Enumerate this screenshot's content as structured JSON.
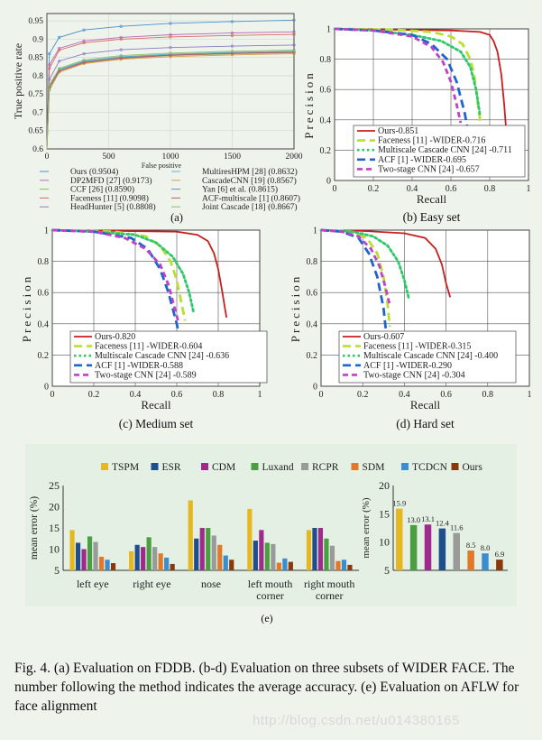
{
  "figure": {
    "caption": "Fig. 4.  (a) Evaluation on FDDB. (b-d) Evaluation on three subsets of WIDER FACE. The number following the method indicates the average accuracy. (e) Evaluation on AFLW for face alignment",
    "watermark": "http://blog.csdn.net/u014380165"
  },
  "chart_data": [
    {
      "type": "line",
      "panel_label": "(a)",
      "xlabel": "False positive",
      "ylabel": "True positive rate",
      "xlim": [
        0,
        2000
      ],
      "ylim": [
        0.6,
        0.97
      ],
      "xticks": [
        "0",
        "500",
        "1000",
        "1500",
        "2000"
      ],
      "yticks": [
        "0.6",
        "0.65",
        "0.7",
        "0.75",
        "0.8",
        "0.85",
        "0.9",
        "0.95"
      ],
      "legend_placement": "below",
      "series": [
        {
          "name": "Ours (0.9504)",
          "color": "#4a8ed0",
          "x": [
            0,
            20,
            100,
            300,
            600,
            1000,
            1500,
            2000
          ],
          "y": [
            0.6,
            0.86,
            0.905,
            0.925,
            0.935,
            0.943,
            0.948,
            0.952
          ]
        },
        {
          "name": "DP2MFD [27] (0.9173)",
          "color": "#b96ab8",
          "x": [
            0,
            20,
            100,
            300,
            600,
            1000,
            1500,
            2000
          ],
          "y": [
            0.6,
            0.83,
            0.875,
            0.895,
            0.905,
            0.912,
            0.917,
            0.92
          ]
        },
        {
          "name": "CCF [26] (0.8590)",
          "color": "#8cb85a",
          "x": [
            0,
            20,
            100,
            300,
            600,
            1000,
            1500,
            2000
          ],
          "y": [
            0.6,
            0.76,
            0.81,
            0.835,
            0.847,
            0.855,
            0.86,
            0.863
          ]
        },
        {
          "name": "Faceness [11] (0.9098)",
          "color": "#d86a60",
          "x": [
            0,
            20,
            100,
            300,
            600,
            1000,
            1500,
            2000
          ],
          "y": [
            0.6,
            0.82,
            0.87,
            0.89,
            0.9,
            0.906,
            0.91,
            0.913
          ]
        },
        {
          "name": "HeadHunter [5] (0.8808)",
          "color": "#8e79c4",
          "x": [
            0,
            20,
            100,
            300,
            600,
            1000,
            1500,
            2000
          ],
          "y": [
            0.6,
            0.79,
            0.84,
            0.86,
            0.871,
            0.877,
            0.881,
            0.884
          ]
        },
        {
          "name": "MultiresHPM [28] (0.8632)",
          "color": "#5ab8c8",
          "x": [
            0,
            20,
            100,
            300,
            600,
            1000,
            1500,
            2000
          ],
          "y": [
            0.6,
            0.77,
            0.818,
            0.84,
            0.852,
            0.859,
            0.864,
            0.867
          ]
        },
        {
          "name": "CascadeCNN [19] (0.8567)",
          "color": "#d9a04a",
          "x": [
            0,
            20,
            100,
            300,
            600,
            1000,
            1500,
            2000
          ],
          "y": [
            0.6,
            0.765,
            0.81,
            0.833,
            0.845,
            0.852,
            0.857,
            0.86
          ]
        },
        {
          "name": "Yan [6] et al. (0.8615)",
          "color": "#6a88c0",
          "x": [
            0,
            20,
            100,
            300,
            600,
            1000,
            1500,
            2000
          ],
          "y": [
            0.6,
            0.77,
            0.815,
            0.838,
            0.85,
            0.857,
            0.862,
            0.865
          ]
        },
        {
          "name": "ACF-multiscale [1] (0.8607)",
          "color": "#c45a5a",
          "x": [
            0,
            20,
            100,
            300,
            600,
            1000,
            1500,
            2000
          ],
          "y": [
            0.6,
            0.768,
            0.813,
            0.836,
            0.848,
            0.856,
            0.861,
            0.864
          ]
        },
        {
          "name": "Joint Cascade [18] (0.8667)",
          "color": "#8bbf6a",
          "x": [
            0,
            20,
            100,
            300,
            600,
            1000,
            1500,
            2000
          ],
          "y": [
            0.6,
            0.775,
            0.82,
            0.843,
            0.855,
            0.862,
            0.867,
            0.87
          ]
        }
      ]
    },
    {
      "type": "line",
      "panel_label": "(b) Easy set",
      "xlabel": "Recall",
      "ylabel": "Precision",
      "xlim": [
        0,
        1
      ],
      "ylim": [
        0,
        1
      ],
      "xticks": [
        "0",
        "0.2",
        "0.4",
        "0.6",
        "0.8",
        "1"
      ],
      "yticks": [
        "0",
        "0.2",
        "0.4",
        "0.6",
        "0.8",
        "1"
      ],
      "legend_placement": "bottom-left",
      "series": [
        {
          "name": "Ours-0.851",
          "color": "#c81e1e",
          "dash": "solid",
          "x": [
            0,
            0.3,
            0.6,
            0.75,
            0.8,
            0.82,
            0.84,
            0.86,
            0.875,
            0.885
          ],
          "y": [
            1,
            0.995,
            0.99,
            0.98,
            0.96,
            0.92,
            0.85,
            0.7,
            0.5,
            0.33
          ]
        },
        {
          "name": "Faceness [11] -WIDER-0.716",
          "color": "#b8e030",
          "dash": "long",
          "x": [
            0,
            0.3,
            0.5,
            0.6,
            0.66,
            0.7,
            0.72,
            0.74,
            0.76
          ],
          "y": [
            1,
            0.995,
            0.98,
            0.95,
            0.9,
            0.8,
            0.7,
            0.5,
            0.3
          ]
        },
        {
          "name": "Multiscale Cascade CNN [24] -0.711",
          "color": "#2ec86a",
          "dash": "dot",
          "x": [
            0,
            0.2,
            0.4,
            0.55,
            0.65,
            0.7,
            0.73,
            0.75
          ],
          "y": [
            1,
            0.99,
            0.96,
            0.92,
            0.85,
            0.75,
            0.6,
            0.43
          ]
        },
        {
          "name": "ACF [1] -WIDER-0.695",
          "color": "#1e64d0",
          "dash": "long",
          "x": [
            0,
            0.2,
            0.4,
            0.5,
            0.58,
            0.63,
            0.67,
            0.7,
            0.72
          ],
          "y": [
            1,
            0.99,
            0.96,
            0.9,
            0.8,
            0.65,
            0.45,
            0.25,
            0.05
          ]
        },
        {
          "name": "Two-stage CNN [24] -0.657",
          "color": "#c040c8",
          "dash": "short",
          "x": [
            0,
            0.2,
            0.4,
            0.5,
            0.56,
            0.6,
            0.63,
            0.65
          ],
          "y": [
            1,
            0.99,
            0.95,
            0.88,
            0.78,
            0.65,
            0.5,
            0.38
          ]
        }
      ]
    },
    {
      "type": "line",
      "panel_label": "(c) Medium set",
      "xlabel": "Recall",
      "ylabel": "Precision",
      "xlim": [
        0,
        1
      ],
      "ylim": [
        0,
        1
      ],
      "xticks": [
        "0",
        "0.2",
        "0.4",
        "0.6",
        "0.8",
        "1"
      ],
      "yticks": [
        "0",
        "0.2",
        "0.4",
        "0.6",
        "0.8",
        "1"
      ],
      "legend_placement": "bottom-left",
      "series": [
        {
          "name": "Ours-0.820",
          "color": "#c81e1e",
          "dash": "solid",
          "x": [
            0,
            0.3,
            0.6,
            0.7,
            0.75,
            0.78,
            0.8,
            0.82,
            0.835,
            0.84
          ],
          "y": [
            1,
            0.995,
            0.99,
            0.97,
            0.93,
            0.85,
            0.75,
            0.6,
            0.48,
            0.44
          ]
        },
        {
          "name": "Faceness [11] -WIDER-0.604",
          "color": "#b8e030",
          "dash": "long",
          "x": [
            0,
            0.3,
            0.45,
            0.52,
            0.57,
            0.6,
            0.62,
            0.64
          ],
          "y": [
            1,
            0.99,
            0.96,
            0.9,
            0.8,
            0.68,
            0.55,
            0.42
          ]
        },
        {
          "name": "Multiscale Cascade CNN [24] -0.636",
          "color": "#2ec86a",
          "dash": "dot",
          "x": [
            0,
            0.2,
            0.4,
            0.5,
            0.58,
            0.63,
            0.66,
            0.68
          ],
          "y": [
            1,
            0.99,
            0.97,
            0.92,
            0.83,
            0.72,
            0.6,
            0.48
          ]
        },
        {
          "name": "ACF [1] -WIDER-0.588",
          "color": "#1e64d0",
          "dash": "long",
          "x": [
            0,
            0.2,
            0.38,
            0.46,
            0.52,
            0.56,
            0.6,
            0.63,
            0.65
          ],
          "y": [
            1,
            0.99,
            0.95,
            0.88,
            0.75,
            0.6,
            0.4,
            0.2,
            0.02
          ]
        },
        {
          "name": "Two-stage CNN [24] -0.589",
          "color": "#c040c8",
          "dash": "short",
          "x": [
            0,
            0.2,
            0.35,
            0.45,
            0.52,
            0.56,
            0.59,
            0.61
          ],
          "y": [
            1,
            0.99,
            0.95,
            0.88,
            0.78,
            0.65,
            0.5,
            0.4
          ]
        }
      ]
    },
    {
      "type": "line",
      "panel_label": "(d) Hard set",
      "xlabel": "Recall",
      "ylabel": "Precision",
      "xlim": [
        0,
        1
      ],
      "ylim": [
        0,
        1
      ],
      "xticks": [
        "0",
        "0.2",
        "0.4",
        "0.6",
        "0.8",
        "1"
      ],
      "yticks": [
        "0",
        "0.2",
        "0.4",
        "0.6",
        "0.8",
        "1"
      ],
      "legend_placement": "bottom-left",
      "series": [
        {
          "name": "Ours-0.607",
          "color": "#c81e1e",
          "dash": "solid",
          "x": [
            0,
            0.2,
            0.4,
            0.5,
            0.55,
            0.58,
            0.6,
            0.62
          ],
          "y": [
            1,
            0.995,
            0.98,
            0.95,
            0.88,
            0.78,
            0.66,
            0.57
          ]
        },
        {
          "name": "Faceness [11] -WIDER-0.315",
          "color": "#b8e030",
          "dash": "long",
          "x": [
            0,
            0.15,
            0.22,
            0.27,
            0.3,
            0.32,
            0.33
          ],
          "y": [
            1,
            0.99,
            0.95,
            0.85,
            0.7,
            0.52,
            0.38
          ]
        },
        {
          "name": "Multiscale Cascade CNN [24] -0.400",
          "color": "#2ec86a",
          "dash": "dot",
          "x": [
            0,
            0.15,
            0.25,
            0.32,
            0.37,
            0.4,
            0.42
          ],
          "y": [
            1,
            0.99,
            0.96,
            0.9,
            0.8,
            0.68,
            0.57
          ]
        },
        {
          "name": "ACF [1] -WIDER-0.290",
          "color": "#1e64d0",
          "dash": "long",
          "x": [
            0,
            0.1,
            0.18,
            0.23,
            0.27,
            0.3,
            0.32,
            0.34
          ],
          "y": [
            1,
            0.99,
            0.95,
            0.85,
            0.7,
            0.5,
            0.25,
            0.02
          ]
        },
        {
          "name": "Two-stage CNN [24] -0.304",
          "color": "#c040c8",
          "dash": "short",
          "x": [
            0,
            0.1,
            0.18,
            0.24,
            0.28,
            0.31,
            0.33
          ],
          "y": [
            1,
            0.99,
            0.96,
            0.88,
            0.77,
            0.63,
            0.52
          ]
        }
      ]
    },
    {
      "type": "bar",
      "panel_label": "(e)",
      "ylabel": "mean error (%)",
      "ylim": [
        5,
        25
      ],
      "yticks": [
        "5",
        "10",
        "15",
        "20",
        "25"
      ],
      "categories": [
        "left eye",
        "right eye",
        "nose",
        "left mouth corner",
        "right mouth corner"
      ],
      "category_lines": [
        [
          "left eye"
        ],
        [
          "right eye"
        ],
        [
          "nose"
        ],
        [
          "left mouth",
          "corner"
        ],
        [
          "right mouth",
          "corner"
        ]
      ],
      "legend_placement": "top",
      "series": [
        {
          "name": "TSPM",
          "color": "#e6b820",
          "values": [
            14.5,
            9.5,
            21.5,
            19.5,
            14.5
          ]
        },
        {
          "name": "ESR",
          "color": "#1f4e8c",
          "values": [
            11.5,
            11.0,
            12.5,
            12.0,
            15.0
          ]
        },
        {
          "name": "CDM",
          "color": "#9e2a8c",
          "values": [
            10.0,
            10.5,
            15.0,
            14.5,
            15.0
          ]
        },
        {
          "name": "Luxand",
          "color": "#4aa040",
          "values": [
            13.0,
            12.8,
            15.0,
            11.5,
            12.5
          ]
        },
        {
          "name": "RCPR",
          "color": "#9a9a9a",
          "values": [
            11.7,
            10.5,
            13.2,
            11.2,
            10.8
          ]
        },
        {
          "name": "SDM",
          "color": "#e07a2a",
          "values": [
            8.2,
            9.0,
            11.0,
            6.8,
            7.2
          ]
        },
        {
          "name": "TCDCN",
          "color": "#3a8ed0",
          "values": [
            7.5,
            8.0,
            8.5,
            7.8,
            7.5
          ]
        },
        {
          "name": "Ours",
          "color": "#8a3a0a",
          "values": [
            6.7,
            6.5,
            7.5,
            7.0,
            6.3
          ]
        }
      ]
    },
    {
      "type": "bar",
      "panel_label": "(e)",
      "ylabel": "mean error (%)",
      "ylim": [
        5,
        20
      ],
      "yticks": [
        "5",
        "10",
        "15",
        "20"
      ],
      "categories": [
        "TSPM",
        "ESR",
        "CDM",
        "Luxand",
        "RCPR",
        "SDM",
        "TCDCN",
        "Ours"
      ],
      "values": [
        15.9,
        13.0,
        13.1,
        12.4,
        11.6,
        8.5,
        8.0,
        6.9
      ],
      "data_labels": [
        "15.9",
        "13.0",
        "13.1",
        "12.4",
        "11.6",
        "8.5",
        "8.0",
        "6.9"
      ],
      "colors": [
        "#e6b820",
        "#4aa040",
        "#9e2a8c",
        "#1f4e8c",
        "#9a9a9a",
        "#e07a2a",
        "#3a8ed0",
        "#8a3a0a"
      ]
    }
  ]
}
